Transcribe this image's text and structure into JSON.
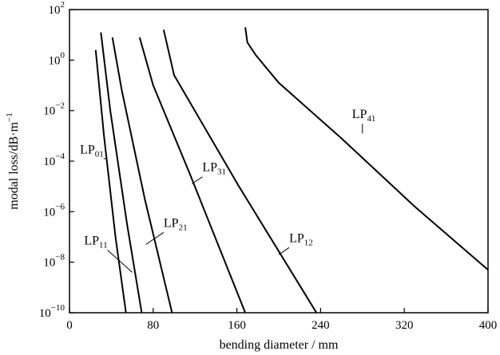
{
  "chart_data": {
    "type": "line",
    "title": "",
    "xlabel": "bending diameter / mm",
    "ylabel_main": "modal  loss/dB·m",
    "ylabel_exponent": "−1",
    "xlim": [
      0,
      400
    ],
    "ylim_log10": [
      -10,
      2
    ],
    "y_scale": "log",
    "grid": false,
    "x_ticks": [
      0,
      80,
      160,
      240,
      320,
      400
    ],
    "x_tick_labels": [
      "0",
      "80",
      "160",
      "240",
      "320",
      "400"
    ],
    "y_ticks_log10": [
      -10,
      -8,
      -6,
      -4,
      -2,
      0,
      2
    ],
    "y_tick_labels": [
      {
        "base": "10",
        "exp": "−10"
      },
      {
        "base": "10",
        "exp": "−8"
      },
      {
        "base": "10",
        "exp": "−6"
      },
      {
        "base": "10",
        "exp": "−4"
      },
      {
        "base": "10",
        "exp": "−2"
      },
      {
        "base": "10",
        "exp": "0"
      },
      {
        "base": "10",
        "exp": "2"
      }
    ],
    "series": [
      {
        "name": "LP01",
        "label_main": "LP",
        "label_sub": "01",
        "x": [
          25,
          33,
          44,
          54
        ],
        "y_log10": [
          0.4,
          -3.0,
          -7.0,
          -10
        ]
      },
      {
        "name": "LP11",
        "label_main": "LP",
        "label_sub": "11",
        "x": [
          30,
          39,
          55,
          69
        ],
        "y_log10": [
          1.1,
          -2.0,
          -6.5,
          -10
        ]
      },
      {
        "name": "LP21",
        "label_main": "LP",
        "label_sub": "21",
        "x": [
          41,
          50,
          72,
          98
        ],
        "y_log10": [
          0.9,
          -1.2,
          -5.5,
          -10
        ]
      },
      {
        "name": "LP31",
        "label_main": "LP",
        "label_sub": "31",
        "x": [
          67,
          80,
          115,
          168
        ],
        "y_log10": [
          0.9,
          -1.0,
          -4.5,
          -10
        ]
      },
      {
        "name": "LP12",
        "label_main": "LP",
        "label_sub": "12",
        "x": [
          90,
          100,
          162,
          236
        ],
        "y_log10": [
          1.2,
          -0.6,
          -5.0,
          -10
        ]
      },
      {
        "name": "LP41",
        "label_main": "LP",
        "label_sub": "41",
        "x": [
          168,
          170,
          178,
          200,
          260,
          330,
          400
        ],
        "y_log10": [
          1.3,
          0.7,
          0.2,
          -0.9,
          -3.1,
          -5.8,
          -8.3
        ]
      }
    ],
    "annotations": [
      {
        "series": "LP01",
        "label_x": 10,
        "label_y_log10": -3.7,
        "arrow_to_x": 35,
        "arrow_to_y_log10": -3.9
      },
      {
        "series": "LP11",
        "label_x": 14,
        "label_y_log10": -7.3,
        "arrow_to_x": 60,
        "arrow_to_y_log10": -8.4
      },
      {
        "series": "LP21",
        "label_x": 90,
        "label_y_log10": -6.6,
        "arrow_to_x": 73,
        "arrow_to_y_log10": -7.3
      },
      {
        "series": "LP31",
        "label_x": 127,
        "label_y_log10": -4.4,
        "arrow_to_x": 117,
        "arrow_to_y_log10": -4.9
      },
      {
        "series": "LP12",
        "label_x": 210,
        "label_y_log10": -7.2,
        "arrow_to_x": 200,
        "arrow_to_y_log10": -7.7
      },
      {
        "series": "LP41",
        "label_x": 270,
        "label_y_log10": -2.3,
        "arrow_to_x": 280,
        "arrow_to_y_log10": -2.9
      }
    ]
  }
}
